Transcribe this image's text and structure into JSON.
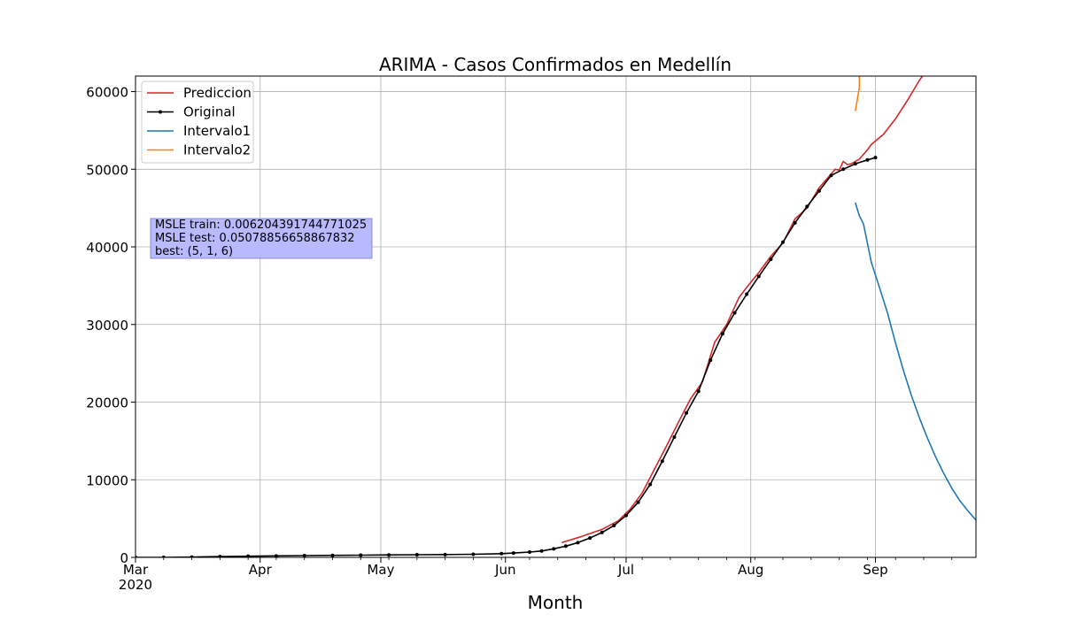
{
  "chart_data": {
    "type": "line",
    "title": "ARIMA - Casos Confirmados en Medellín",
    "xlabel": "Month",
    "ylabel": "",
    "x_axis": {
      "type": "date",
      "range": [
        "2020-03-01",
        "2020-09-26"
      ],
      "major_ticks": [
        {
          "date": "2020-03-01",
          "label": "Mar",
          "sublabel": "2020"
        },
        {
          "date": "2020-04-01",
          "label": "Apr"
        },
        {
          "date": "2020-05-01",
          "label": "May"
        },
        {
          "date": "2020-06-01",
          "label": "Jun"
        },
        {
          "date": "2020-07-01",
          "label": "Jul"
        },
        {
          "date": "2020-08-01",
          "label": "Aug"
        },
        {
          "date": "2020-09-01",
          "label": "Sep"
        }
      ],
      "minor_tick_interval_days": 7
    },
    "y_axis": {
      "range": [
        0,
        62000
      ],
      "ticks": [
        0,
        10000,
        20000,
        30000,
        40000,
        50000,
        60000
      ],
      "tick_labels": [
        "0",
        "10000",
        "20000",
        "30000",
        "40000",
        "50000",
        "60000"
      ]
    },
    "grid": true,
    "legend": {
      "position": "top-left"
    },
    "annotation": {
      "lines": [
        "MSLE train: 0.006204391744771025",
        "MSLE test: 0.05078856658867832",
        "best: (5, 1, 6)"
      ],
      "background": "#b9b9ff",
      "border": "#8c8cd9"
    },
    "series": [
      {
        "name": "Prediccion",
        "color": "#d62728",
        "style": "line",
        "points": [
          [
            "2020-06-15",
            1900
          ],
          [
            "2020-06-20",
            2700
          ],
          [
            "2020-06-25",
            3600
          ],
          [
            "2020-06-29",
            4700
          ],
          [
            "2020-07-02",
            6200
          ],
          [
            "2020-07-05",
            8300
          ],
          [
            "2020-07-08",
            11300
          ],
          [
            "2020-07-11",
            14300
          ],
          [
            "2020-07-14",
            17400
          ],
          [
            "2020-07-17",
            20400
          ],
          [
            "2020-07-20",
            22600
          ],
          [
            "2020-07-23",
            27700
          ],
          [
            "2020-07-26",
            30000
          ],
          [
            "2020-07-29",
            33400
          ],
          [
            "2020-07-31",
            34800
          ],
          [
            "2020-08-03",
            36700
          ],
          [
            "2020-08-06",
            38800
          ],
          [
            "2020-08-09",
            40500
          ],
          [
            "2020-08-12",
            43600
          ],
          [
            "2020-08-15",
            45000
          ],
          [
            "2020-08-18",
            47600
          ],
          [
            "2020-08-21",
            49400
          ],
          [
            "2020-08-22",
            50000
          ],
          [
            "2020-08-23",
            49900
          ],
          [
            "2020-08-24",
            51000
          ],
          [
            "2020-08-25",
            50600
          ],
          [
            "2020-08-26",
            50700
          ],
          [
            "2020-08-28",
            51300
          ],
          [
            "2020-08-30",
            52500
          ],
          [
            "2020-08-31",
            53200
          ],
          [
            "2020-09-03",
            54500
          ],
          [
            "2020-09-06",
            56500
          ],
          [
            "2020-09-09",
            58900
          ],
          [
            "2020-09-12",
            61500
          ],
          [
            "2020-09-13",
            62200
          ]
        ]
      },
      {
        "name": "Original",
        "color": "#000000",
        "style": "line-dots",
        "points": [
          [
            "2020-03-01",
            0
          ],
          [
            "2020-03-08",
            5
          ],
          [
            "2020-03-15",
            30
          ],
          [
            "2020-03-22",
            100
          ],
          [
            "2020-03-29",
            150
          ],
          [
            "2020-04-05",
            190
          ],
          [
            "2020-04-12",
            230
          ],
          [
            "2020-04-19",
            260
          ],
          [
            "2020-04-26",
            290
          ],
          [
            "2020-05-03",
            320
          ],
          [
            "2020-05-10",
            340
          ],
          [
            "2020-05-17",
            360
          ],
          [
            "2020-05-24",
            400
          ],
          [
            "2020-05-31",
            480
          ],
          [
            "2020-06-03",
            560
          ],
          [
            "2020-06-07",
            680
          ],
          [
            "2020-06-10",
            820
          ],
          [
            "2020-06-13",
            1100
          ],
          [
            "2020-06-16",
            1450
          ],
          [
            "2020-06-19",
            1900
          ],
          [
            "2020-06-22",
            2500
          ],
          [
            "2020-06-25",
            3200
          ],
          [
            "2020-06-28",
            4100
          ],
          [
            "2020-07-01",
            5400
          ],
          [
            "2020-07-04",
            7100
          ],
          [
            "2020-07-07",
            9400
          ],
          [
            "2020-07-10",
            12400
          ],
          [
            "2020-07-13",
            15500
          ],
          [
            "2020-07-16",
            18600
          ],
          [
            "2020-07-19",
            21400
          ],
          [
            "2020-07-22",
            25400
          ],
          [
            "2020-07-25",
            28800
          ],
          [
            "2020-07-28",
            31500
          ],
          [
            "2020-07-31",
            33900
          ],
          [
            "2020-08-03",
            36200
          ],
          [
            "2020-08-06",
            38400
          ],
          [
            "2020-08-09",
            40600
          ],
          [
            "2020-08-12",
            43100
          ],
          [
            "2020-08-15",
            45200
          ],
          [
            "2020-08-18",
            47200
          ],
          [
            "2020-08-21",
            49200
          ],
          [
            "2020-08-24",
            50000
          ],
          [
            "2020-08-27",
            50700
          ],
          [
            "2020-08-30",
            51200
          ],
          [
            "2020-09-01",
            51500
          ]
        ]
      },
      {
        "name": "Intervalo1",
        "color": "#1f77b4",
        "style": "line",
        "points": [
          [
            "2020-08-27",
            45700
          ],
          [
            "2020-08-28",
            44000
          ],
          [
            "2020-08-29",
            43000
          ],
          [
            "2020-08-30",
            40500
          ],
          [
            "2020-08-31",
            38000
          ],
          [
            "2020-09-02",
            34800
          ],
          [
            "2020-09-04",
            31500
          ],
          [
            "2020-09-06",
            27600
          ],
          [
            "2020-09-08",
            24000
          ],
          [
            "2020-09-10",
            20800
          ],
          [
            "2020-09-12",
            17900
          ],
          [
            "2020-09-14",
            15300
          ],
          [
            "2020-09-16",
            12900
          ],
          [
            "2020-09-18",
            10800
          ],
          [
            "2020-09-20",
            8900
          ],
          [
            "2020-09-22",
            7300
          ],
          [
            "2020-09-24",
            6000
          ],
          [
            "2020-09-26",
            4800
          ],
          [
            "2020-09-28",
            3700
          ]
        ]
      },
      {
        "name": "Intervalo2",
        "color": "#ff7f0e",
        "style": "line",
        "points": [
          [
            "2020-08-27",
            57500
          ],
          [
            "2020-08-28",
            60500
          ],
          [
            "2020-08-28",
            62200
          ]
        ]
      }
    ]
  }
}
